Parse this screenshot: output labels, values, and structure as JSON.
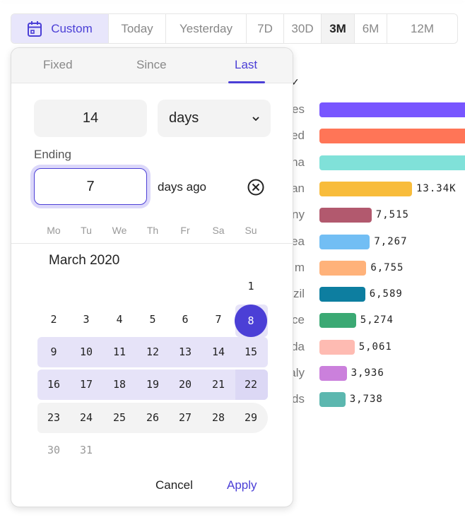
{
  "range_bar": {
    "options": [
      "Custom",
      "Today",
      "Yesterday",
      "7D",
      "30D",
      "3M",
      "6M",
      "12M"
    ],
    "active": "3M",
    "custom_icon": "calendar-icon",
    "accent": "#4b3fd6"
  },
  "chart": {
    "type": "bar",
    "label_fragments": [
      "es",
      "ed",
      "na",
      "an",
      "ny",
      "ea",
      "m",
      "zil",
      "ce",
      "da",
      "aly",
      "ds"
    ],
    "values": [
      null,
      null,
      null,
      13340,
      7515,
      7267,
      6755,
      6589,
      5274,
      5061,
      3936,
      3738
    ],
    "value_labels": [
      "",
      "",
      "",
      "13.34K",
      "7,515",
      "7,267",
      "6,755",
      "6,589",
      "5,274",
      "5,061",
      "3,936",
      "3,738"
    ],
    "colors": [
      "#7856ff",
      "#ff7557",
      "#80e1d9",
      "#f8bc3b",
      "#b2596e",
      "#72bef4",
      "#ffb27a",
      "#0d7ea0",
      "#3ba974",
      "#febbb2",
      "#cb80dc",
      "#5cb7af"
    ]
  },
  "popup": {
    "tabs": [
      "Fixed",
      "Since",
      "Last"
    ],
    "active_tab": "Last",
    "count": "14",
    "unit": "days",
    "ending_label": "Ending",
    "ending_value": "7",
    "ending_suffix": "days ago",
    "weekdays": [
      "Mo",
      "Tu",
      "We",
      "Th",
      "Fr",
      "Sa",
      "Su"
    ],
    "month": "March 2020",
    "weeks": [
      [
        null,
        null,
        null,
        null,
        null,
        null,
        "1"
      ],
      [
        "2",
        "3",
        "4",
        "5",
        "6",
        "7",
        "8"
      ],
      [
        "9",
        "10",
        "11",
        "12",
        "13",
        "14",
        "15"
      ],
      [
        "16",
        "17",
        "18",
        "19",
        "20",
        "21",
        "22"
      ],
      [
        "23",
        "24",
        "25",
        "26",
        "27",
        "28",
        "29"
      ],
      [
        "30",
        "31",
        null,
        null,
        null,
        null,
        null
      ]
    ],
    "selected_day": "8",
    "cancel": "Cancel",
    "apply": "Apply"
  }
}
